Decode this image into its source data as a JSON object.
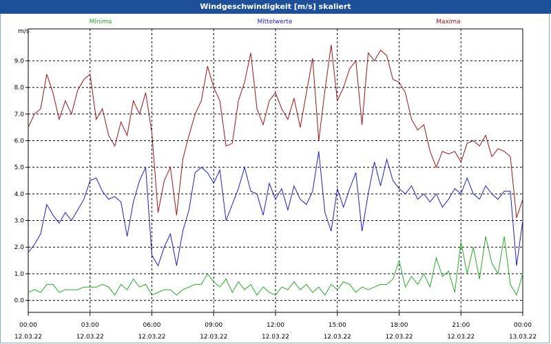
{
  "window": {
    "title": "Windgeschwindigkeit [m/s] skaliert"
  },
  "chart_data": {
    "type": "line",
    "title": "Windgeschwindigkeit [m/s] skaliert",
    "ylabel": "m/s",
    "xlabel": "",
    "ylim": [
      -0.45,
      10.2
    ],
    "xlim": [
      0,
      24
    ],
    "y_ticks": [
      "0.0",
      "1.0",
      "2.0",
      "3.0",
      "4.0",
      "5.0",
      "6.0",
      "7.0",
      "8.0",
      "9.0"
    ],
    "y_tick_values": [
      0,
      1,
      2,
      3,
      4,
      5,
      6,
      7,
      8,
      9
    ],
    "x_tick_values": [
      0,
      3,
      6,
      9,
      12,
      15,
      18,
      21,
      24
    ],
    "x_tick_times": [
      "00:00",
      "03:00",
      "06:00",
      "09:00",
      "12:00",
      "15:00",
      "18:00",
      "21:00",
      "00:00"
    ],
    "x_tick_dates": [
      "12.03.22",
      "12.03.22",
      "12.03.22",
      "12.03.22",
      "12.03.22",
      "12.03.22",
      "12.03.22",
      "12.03.22",
      "13.03.22"
    ],
    "grid": true,
    "legend_position": "top",
    "series": [
      {
        "name": "Minima",
        "color": "#22aa22",
        "x": [
          0,
          0.3,
          0.6,
          0.9,
          1.2,
          1.5,
          1.8,
          2.1,
          2.4,
          2.7,
          3.0,
          3.3,
          3.6,
          3.9,
          4.2,
          4.5,
          4.8,
          5.1,
          5.4,
          5.7,
          6.0,
          6.3,
          6.6,
          6.9,
          7.2,
          7.5,
          7.8,
          8.1,
          8.4,
          8.7,
          9.0,
          9.3,
          9.6,
          9.9,
          10.2,
          10.5,
          10.8,
          11.1,
          11.4,
          11.7,
          12.0,
          12.3,
          12.6,
          12.9,
          13.2,
          13.5,
          13.8,
          14.1,
          14.4,
          14.7,
          15.0,
          15.3,
          15.6,
          15.9,
          16.2,
          16.5,
          16.8,
          17.1,
          17.4,
          17.7,
          18.0,
          18.3,
          18.6,
          18.9,
          19.2,
          19.5,
          19.8,
          20.1,
          20.4,
          20.7,
          21.0,
          21.3,
          21.6,
          21.9,
          22.2,
          22.5,
          22.8,
          23.1,
          23.4,
          23.7,
          24.0
        ],
        "values": [
          0.3,
          0.4,
          0.3,
          0.6,
          0.6,
          0.3,
          0.4,
          0.4,
          0.4,
          0.5,
          0.5,
          0.5,
          0.6,
          0.5,
          0.2,
          0.6,
          0.4,
          0.8,
          0.5,
          0.6,
          0.2,
          0.3,
          0.4,
          0.4,
          0.2,
          0.4,
          0.5,
          0.6,
          0.6,
          1.0,
          0.7,
          0.5,
          0.8,
          0.3,
          0.7,
          0.4,
          0.6,
          0.2,
          0.5,
          0.3,
          0.2,
          0.5,
          0.4,
          0.7,
          0.4,
          0.6,
          0.3,
          0.5,
          0.2,
          0.6,
          0.4,
          0.7,
          0.6,
          0.3,
          0.5,
          0.4,
          0.5,
          0.6,
          0.6,
          0.8,
          1.5,
          0.5,
          0.9,
          0.6,
          1.0,
          0.5,
          1.6,
          0.9,
          1.1,
          0.3,
          2.2,
          1.0,
          2.0,
          0.8,
          2.4,
          1.4,
          1.0,
          2.4,
          0.6,
          0.2,
          1.0
        ]
      },
      {
        "name": "Mittelwerte",
        "color": "#1a1ad0",
        "x": [
          0,
          0.3,
          0.6,
          0.9,
          1.2,
          1.5,
          1.8,
          2.1,
          2.4,
          2.7,
          3.0,
          3.3,
          3.6,
          3.9,
          4.2,
          4.5,
          4.8,
          5.1,
          5.4,
          5.7,
          6.0,
          6.3,
          6.6,
          6.9,
          7.2,
          7.5,
          7.8,
          8.1,
          8.4,
          8.7,
          9.0,
          9.3,
          9.6,
          9.9,
          10.2,
          10.5,
          10.8,
          11.1,
          11.4,
          11.7,
          12.0,
          12.3,
          12.6,
          12.9,
          13.2,
          13.5,
          13.8,
          14.1,
          14.4,
          14.7,
          15.0,
          15.3,
          15.6,
          15.9,
          16.2,
          16.5,
          16.8,
          17.1,
          17.4,
          17.7,
          18.0,
          18.3,
          18.6,
          18.9,
          19.2,
          19.5,
          19.8,
          20.1,
          20.4,
          20.7,
          21.0,
          21.3,
          21.6,
          21.9,
          22.2,
          22.5,
          22.8,
          23.1,
          23.4,
          23.7,
          24.0
        ],
        "values": [
          1.8,
          2.1,
          2.5,
          3.6,
          3.2,
          2.9,
          3.3,
          3.0,
          3.4,
          3.8,
          4.5,
          4.6,
          4.1,
          3.8,
          3.9,
          3.7,
          2.4,
          3.7,
          4.5,
          5.0,
          1.7,
          1.3,
          2.0,
          2.5,
          1.3,
          2.6,
          3.4,
          4.8,
          5.0,
          4.8,
          4.4,
          4.9,
          3.0,
          3.6,
          4.2,
          5.0,
          4.1,
          4.0,
          3.2,
          4.4,
          3.8,
          4.2,
          3.4,
          4.3,
          3.8,
          3.6,
          4.1,
          5.6,
          3.3,
          2.6,
          4.2,
          3.5,
          4.2,
          4.8,
          2.6,
          4.0,
          5.2,
          4.3,
          5.3,
          4.5,
          4.2,
          4.0,
          4.3,
          3.8,
          4.0,
          3.7,
          4.0,
          3.5,
          3.8,
          4.2,
          4.0,
          4.6,
          4.0,
          3.8,
          4.3,
          4.0,
          3.8,
          4.1,
          4.1,
          1.3,
          3.0
        ]
      },
      {
        "name": "Maxima",
        "color": "#a01010",
        "x": [
          0,
          0.3,
          0.6,
          0.9,
          1.2,
          1.5,
          1.8,
          2.1,
          2.4,
          2.7,
          3.0,
          3.3,
          3.6,
          3.9,
          4.2,
          4.5,
          4.8,
          5.1,
          5.4,
          5.7,
          6.0,
          6.3,
          6.6,
          6.9,
          7.2,
          7.5,
          7.8,
          8.1,
          8.4,
          8.7,
          9.0,
          9.3,
          9.6,
          9.9,
          10.2,
          10.5,
          10.8,
          11.1,
          11.4,
          11.7,
          12.0,
          12.3,
          12.6,
          12.9,
          13.2,
          13.5,
          13.8,
          14.1,
          14.4,
          14.7,
          15.0,
          15.3,
          15.6,
          15.9,
          16.2,
          16.5,
          16.8,
          17.1,
          17.4,
          17.7,
          18.0,
          18.3,
          18.6,
          18.9,
          19.2,
          19.5,
          19.8,
          20.1,
          20.4,
          20.7,
          21.0,
          21.3,
          21.6,
          21.9,
          22.2,
          22.5,
          22.8,
          23.1,
          23.4,
          23.7,
          24.0
        ],
        "values": [
          6.5,
          7.0,
          7.2,
          8.5,
          7.8,
          6.8,
          7.5,
          7.0,
          7.9,
          8.3,
          8.5,
          6.8,
          7.2,
          6.2,
          5.8,
          6.7,
          6.2,
          7.5,
          7.0,
          7.8,
          6.3,
          3.3,
          4.5,
          5.0,
          3.2,
          5.3,
          6.2,
          7.0,
          7.5,
          8.8,
          8.0,
          7.5,
          5.8,
          5.9,
          7.5,
          8.2,
          9.3,
          7.2,
          6.6,
          7.5,
          7.8,
          7.2,
          6.8,
          7.6,
          6.5,
          7.8,
          9.1,
          6.0,
          7.9,
          9.6,
          7.5,
          8.0,
          8.7,
          9.0,
          6.6,
          9.3,
          9.0,
          9.4,
          9.2,
          8.3,
          8.2,
          7.8,
          6.8,
          6.4,
          6.6,
          5.6,
          5.0,
          5.6,
          5.5,
          5.6,
          5.2,
          5.9,
          6.0,
          5.8,
          6.2,
          5.4,
          5.7,
          5.6,
          5.4,
          3.1,
          3.8
        ]
      }
    ]
  }
}
